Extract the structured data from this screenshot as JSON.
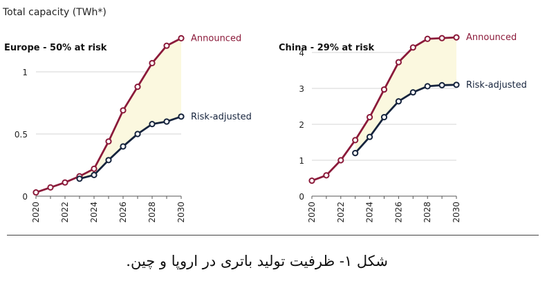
{
  "figure": {
    "title": "Total capacity (TWh*)",
    "caption": "شکل ۱- ظرفیت تولید باتری در اروپا و چین."
  },
  "colors": {
    "announced": "#8b1a3a",
    "risk_adjusted": "#16243d",
    "fill": "#fbf8df",
    "grid": "#d6d6d6",
    "axis": "#555555"
  },
  "chart_data": [
    {
      "type": "line",
      "title": "Europe - 50% at risk",
      "ylim": [
        0,
        1.3
      ],
      "yticks": [
        0,
        0.5,
        1
      ],
      "ytick_labels": [
        "0",
        "0.5",
        "1"
      ],
      "xlim": [
        2020,
        2030
      ],
      "xticks": [
        "2020",
        "2022",
        "2024",
        "2026",
        "2028",
        "2030"
      ],
      "grid": true,
      "series": [
        {
          "name": "Announced",
          "x": [
            2020,
            2021,
            2022,
            2023,
            2024,
            2025,
            2026,
            2027,
            2028,
            2029,
            2030
          ],
          "y": [
            0.03,
            0.07,
            0.11,
            0.16,
            0.22,
            0.44,
            0.69,
            0.88,
            1.07,
            1.21,
            1.27
          ]
        },
        {
          "name": "Risk-adjusted",
          "x": [
            2023,
            2024,
            2025,
            2026,
            2027,
            2028,
            2029,
            2030
          ],
          "y": [
            0.14,
            0.17,
            0.29,
            0.4,
            0.5,
            0.58,
            0.6,
            0.64
          ]
        }
      ]
    },
    {
      "type": "line",
      "title": "China - 29% at risk",
      "ylim": [
        0,
        4.5
      ],
      "yticks": [
        0,
        1,
        2,
        3,
        4
      ],
      "ytick_labels": [
        "0",
        "1",
        "2",
        "3",
        "4"
      ],
      "xlim": [
        2020,
        2030
      ],
      "xticks": [
        "2020",
        "2022",
        "2024",
        "2026",
        "2028",
        "2030"
      ],
      "grid": true,
      "series": [
        {
          "name": "Announced",
          "x": [
            2020,
            2021,
            2022,
            2023,
            2024,
            2025,
            2026,
            2027,
            2028,
            2029,
            2030
          ],
          "y": [
            0.43,
            0.58,
            1.0,
            1.56,
            2.2,
            2.97,
            3.73,
            4.14,
            4.38,
            4.4,
            4.42
          ]
        },
        {
          "name": "Risk-adjusted",
          "x": [
            2023,
            2024,
            2025,
            2026,
            2027,
            2028,
            2029,
            2030
          ],
          "y": [
            1.2,
            1.65,
            2.2,
            2.64,
            2.89,
            3.06,
            3.09,
            3.1
          ]
        }
      ]
    }
  ]
}
